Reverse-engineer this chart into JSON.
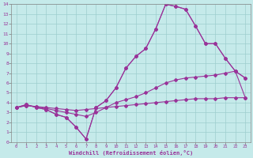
{
  "xlabel": "Windchill (Refroidissement éolien,°C)",
  "bg_color": "#c5eaea",
  "grid_color": "#9dcece",
  "line_color": "#993399",
  "xlim": [
    -0.5,
    23.5
  ],
  "ylim": [
    0,
    14
  ],
  "xticks": [
    0,
    1,
    2,
    3,
    4,
    5,
    6,
    7,
    8,
    9,
    10,
    11,
    12,
    13,
    14,
    15,
    16,
    17,
    18,
    19,
    20,
    21,
    22,
    23
  ],
  "yticks": [
    0,
    1,
    2,
    3,
    4,
    5,
    6,
    7,
    8,
    9,
    10,
    11,
    12,
    13,
    14
  ],
  "line1_x": [
    0,
    1,
    2,
    3,
    4,
    5,
    6,
    7,
    8,
    9,
    10,
    11,
    12,
    13,
    14,
    15,
    16,
    17,
    18,
    19,
    20,
    21,
    22,
    23
  ],
  "line1_y": [
    3.5,
    3.7,
    3.6,
    3.5,
    3.4,
    3.3,
    3.2,
    3.3,
    3.4,
    3.5,
    3.6,
    3.7,
    3.8,
    3.9,
    4.0,
    4.1,
    4.2,
    4.3,
    4.4,
    4.4,
    4.4,
    4.5,
    4.5,
    4.5
  ],
  "line2_x": [
    0,
    1,
    2,
    3,
    4,
    5,
    6,
    7,
    8,
    9,
    10,
    11,
    12,
    13,
    14,
    15,
    16,
    17,
    18,
    19,
    20,
    21,
    22,
    23
  ],
  "line2_y": [
    3.5,
    3.7,
    3.6,
    3.4,
    3.2,
    3.0,
    2.8,
    2.6,
    3.0,
    3.5,
    4.0,
    4.3,
    4.6,
    5.0,
    5.5,
    6.0,
    6.3,
    6.5,
    6.6,
    6.7,
    6.8,
    7.0,
    7.2,
    6.5
  ],
  "line3_x": [
    0,
    1,
    2,
    3,
    4,
    5,
    6,
    7,
    8,
    9,
    10,
    11,
    12,
    13,
    14,
    15,
    16,
    17,
    18,
    19,
    20,
    21,
    22,
    23
  ],
  "line3_y": [
    3.5,
    3.8,
    3.5,
    3.3,
    2.8,
    2.5,
    1.5,
    0.3,
    3.5,
    4.2,
    5.5,
    7.5,
    8.7,
    9.5,
    11.5,
    14.0,
    13.8,
    13.5,
    11.8,
    10.0,
    10.0,
    8.5,
    7.2,
    6.5
  ],
  "line4_x": [
    0,
    1,
    2,
    3,
    4,
    5,
    6,
    7,
    8,
    9,
    10,
    11,
    12,
    13,
    14,
    15,
    16,
    17,
    18,
    19,
    20,
    21,
    22,
    23
  ],
  "line4_y": [
    3.5,
    3.8,
    3.5,
    3.3,
    2.8,
    2.5,
    1.5,
    0.3,
    3.5,
    4.2,
    5.5,
    7.5,
    8.7,
    9.5,
    11.5,
    14.0,
    13.8,
    13.5,
    11.8,
    10.0,
    10.0,
    8.5,
    7.2,
    4.5
  ]
}
